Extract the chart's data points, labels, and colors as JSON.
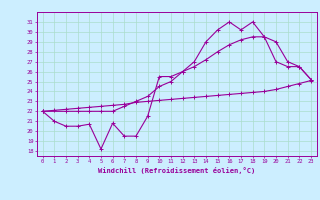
{
  "xlabel": "Windchill (Refroidissement éolien,°C)",
  "bg_color": "#cceeff",
  "line_color": "#990099",
  "grid_color": "#aaddcc",
  "xlim": [
    -0.5,
    23.5
  ],
  "ylim": [
    17.5,
    32.0
  ],
  "xticks": [
    0,
    1,
    2,
    3,
    4,
    5,
    6,
    7,
    8,
    9,
    10,
    11,
    12,
    13,
    14,
    15,
    16,
    17,
    18,
    19,
    20,
    21,
    22,
    23
  ],
  "yticks": [
    18,
    19,
    20,
    21,
    22,
    23,
    24,
    25,
    26,
    27,
    28,
    29,
    30,
    31
  ],
  "line1_x": [
    0,
    1,
    2,
    3,
    4,
    5,
    6,
    7,
    8,
    9,
    10,
    11,
    12,
    13,
    14,
    15,
    16,
    17,
    18,
    19,
    20,
    21,
    22,
    23
  ],
  "line1_y": [
    22.0,
    22.1,
    22.2,
    22.3,
    22.4,
    22.5,
    22.6,
    22.7,
    22.9,
    23.0,
    23.1,
    23.2,
    23.3,
    23.4,
    23.5,
    23.6,
    23.7,
    23.8,
    23.9,
    24.0,
    24.2,
    24.5,
    24.8,
    25.1
  ],
  "line2_x": [
    0,
    2,
    3,
    4,
    5,
    6,
    7,
    8,
    9,
    10,
    11,
    12,
    13,
    14,
    15,
    16,
    17,
    18,
    19,
    20,
    21,
    22,
    23
  ],
  "line2_y": [
    22.0,
    22.0,
    22.0,
    22.0,
    22.0,
    22.0,
    22.5,
    23.0,
    23.5,
    24.5,
    25.0,
    26.0,
    26.5,
    27.2,
    28.0,
    28.7,
    29.2,
    29.5,
    29.5,
    29.0,
    27.0,
    26.5,
    25.2
  ],
  "line3_x": [
    0,
    1,
    2,
    3,
    4,
    5,
    6,
    7,
    8,
    9,
    10,
    11,
    12,
    13,
    14,
    15,
    16,
    17,
    18,
    19,
    20,
    21,
    22,
    23
  ],
  "line3_y": [
    22.0,
    21.0,
    20.5,
    20.5,
    20.7,
    18.2,
    20.8,
    19.5,
    19.5,
    21.5,
    25.5,
    25.5,
    26.0,
    27.0,
    29.0,
    30.2,
    31.0,
    30.2,
    31.0,
    29.5,
    27.0,
    26.5,
    26.5,
    25.2
  ]
}
